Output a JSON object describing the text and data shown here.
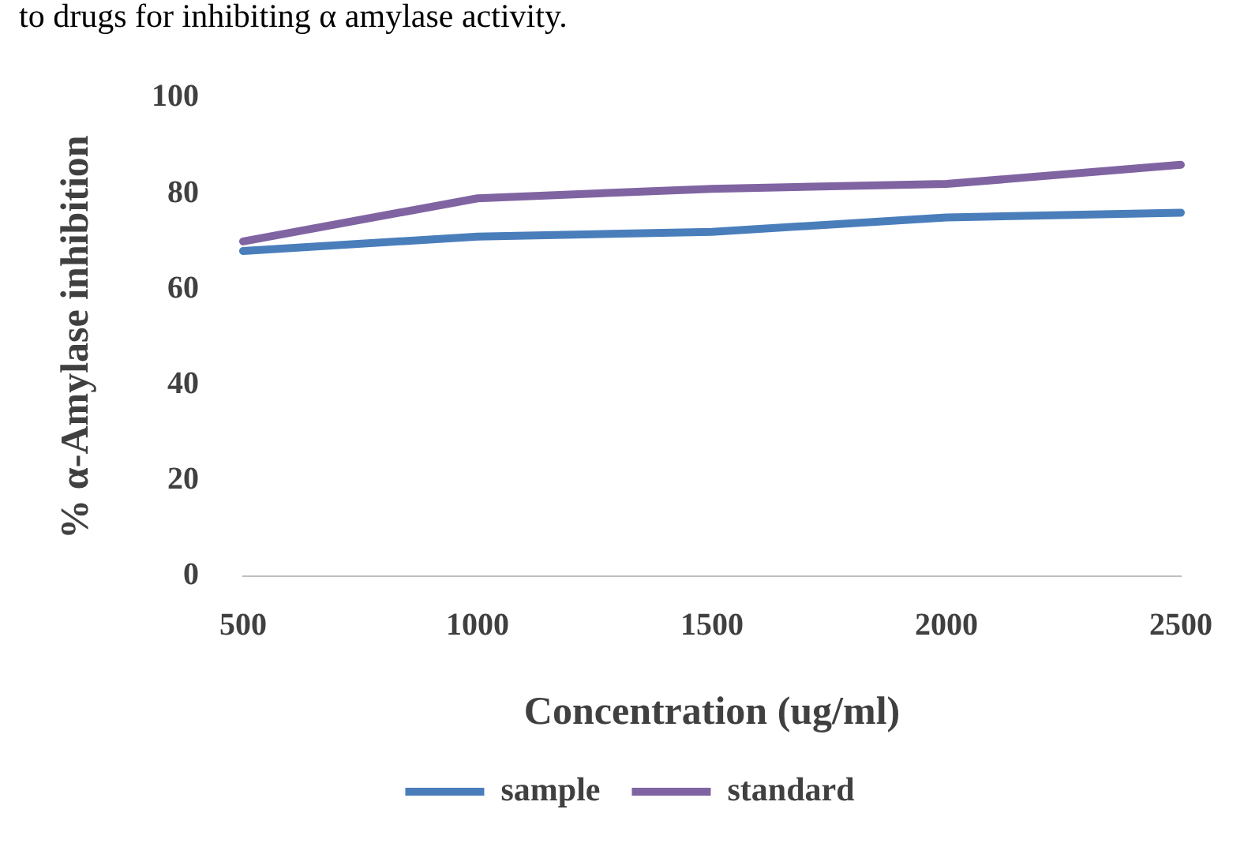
{
  "chart_data": {
    "type": "line",
    "annotations": [
      "to drugs for inhibiting α amylase activity."
    ],
    "xlabel": "Concentration (ug/ml)",
    "ylabel": "% α-Amylase inhibition",
    "categories": [
      "500",
      "1000",
      "1500",
      "2000",
      "2500"
    ],
    "series": [
      {
        "name": "sample",
        "color": "#4a7ebb",
        "values": [
          68,
          71,
          72,
          75,
          76
        ]
      },
      {
        "name": "standard",
        "color": "#8064a2",
        "values": [
          70,
          79,
          81,
          82,
          86
        ]
      }
    ],
    "ylim": [
      0,
      100
    ],
    "yticks": [
      0,
      20,
      40,
      60,
      80,
      100
    ],
    "grid": false,
    "legend": "bottom",
    "marker": "none",
    "line_style": "solid"
  }
}
